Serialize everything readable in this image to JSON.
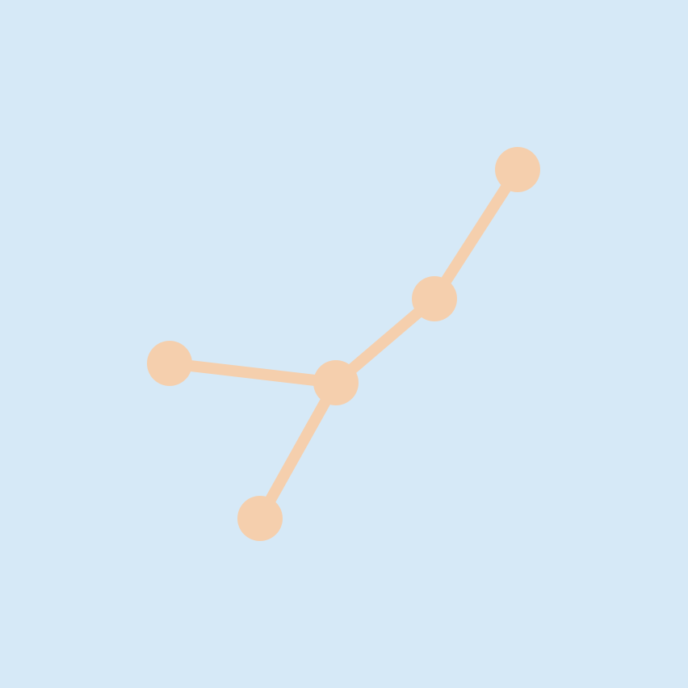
{
  "colors": {
    "background": "#d6e9f7",
    "graphic": "#f5cfad"
  },
  "graphic": {
    "icon": "constellation-icon",
    "node_count": 5,
    "edge_count": 4
  }
}
